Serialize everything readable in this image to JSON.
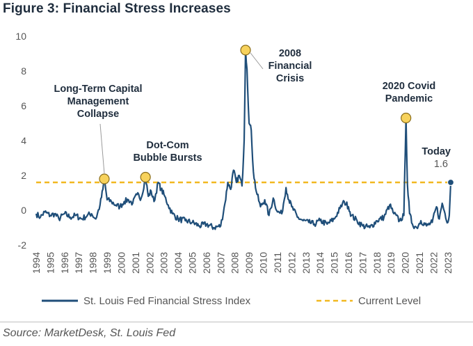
{
  "title": "Figure 3: Financial Stress Increases",
  "source": "Source: MarketDesk, St. Louis Fed",
  "colors": {
    "series": "#1f4e79",
    "current": "#f2b820",
    "marker": "#f7d25c",
    "text": "#1f2d3d"
  },
  "chart_data": {
    "type": "line",
    "title": "Figure 3: Financial Stress Increases",
    "xlabel": "",
    "ylabel": "",
    "ylim": [
      -2,
      10
    ],
    "yticks": [
      "-2",
      "0",
      "2",
      "4",
      "6",
      "8",
      "10"
    ],
    "xlim": [
      1994,
      2023.3
    ],
    "xticks": [
      "1994",
      "1995",
      "1996",
      "1997",
      "1998",
      "1999",
      "2000",
      "2001",
      "2002",
      "2003",
      "2004",
      "2005",
      "2006",
      "2007",
      "2008",
      "2009",
      "2010",
      "2011",
      "2012",
      "2013",
      "2014",
      "2015",
      "2016",
      "2017",
      "2018",
      "2019",
      "2020",
      "2021",
      "2022",
      "2023"
    ],
    "grid": false,
    "legend_position": "bottom",
    "series": [
      {
        "name": "St. Louis Fed Financial Stress Index",
        "x": [
          1994.0,
          1994.3,
          1994.6,
          1995.0,
          1995.3,
          1995.6,
          1996.0,
          1996.4,
          1996.8,
          1997.2,
          1997.6,
          1997.9,
          1998.2,
          1998.5,
          1998.7,
          1998.8,
          1999.0,
          1999.3,
          1999.6,
          1999.9,
          2000.2,
          2000.5,
          2000.8,
          2001.1,
          2001.4,
          2001.7,
          2001.9,
          2002.1,
          2002.3,
          2002.6,
          2002.8,
          2003.0,
          2003.3,
          2003.6,
          2004.0,
          2004.5,
          2005.0,
          2005.5,
          2006.0,
          2006.5,
          2007.0,
          2007.3,
          2007.5,
          2007.7,
          2007.9,
          2008.1,
          2008.3,
          2008.5,
          2008.65,
          2008.75,
          2008.85,
          2009.0,
          2009.15,
          2009.3,
          2009.5,
          2009.8,
          2010.1,
          2010.4,
          2010.7,
          2011.0,
          2011.3,
          2011.6,
          2011.8,
          2012.0,
          2012.4,
          2012.8,
          2013.2,
          2013.6,
          2014.0,
          2014.5,
          2015.0,
          2015.4,
          2015.7,
          2016.0,
          2016.2,
          2016.6,
          2017.0,
          2017.5,
          2018.0,
          2018.5,
          2018.9,
          2019.2,
          2019.6,
          2019.9,
          2020.05,
          2020.15,
          2020.3,
          2020.5,
          2020.8,
          2021.1,
          2021.5,
          2021.9,
          2022.2,
          2022.4,
          2022.6,
          2022.8,
          2023.0,
          2023.1,
          2023.2
        ],
        "y": [
          -0.2,
          -0.4,
          -0.1,
          -0.3,
          -0.2,
          -0.5,
          -0.2,
          -0.4,
          -0.3,
          -0.5,
          -0.3,
          -0.2,
          -0.5,
          0.3,
          1.2,
          1.8,
          0.6,
          0.5,
          0.3,
          0.2,
          0.5,
          0.6,
          0.4,
          0.9,
          0.7,
          1.9,
          0.8,
          1.1,
          0.5,
          1.6,
          1.2,
          0.9,
          0.3,
          -0.2,
          -0.5,
          -0.6,
          -0.7,
          -0.9,
          -0.8,
          -1.0,
          -0.9,
          0.4,
          1.6,
          1.2,
          2.3,
          1.6,
          2.0,
          1.4,
          4.0,
          9.2,
          8.1,
          5.0,
          4.6,
          2.2,
          1.1,
          0.2,
          0.6,
          -0.3,
          0.7,
          -0.1,
          -0.2,
          1.3,
          0.6,
          0.2,
          -0.4,
          -0.6,
          -0.7,
          -0.8,
          -0.6,
          -0.8,
          -0.5,
          0.1,
          0.5,
          0.2,
          -0.3,
          -0.6,
          -0.9,
          -1.0,
          -0.6,
          -0.4,
          0.3,
          -0.2,
          -0.6,
          -0.3,
          5.3,
          1.5,
          -0.2,
          -0.8,
          -1.0,
          -0.6,
          -0.9,
          -0.7,
          0.2,
          -0.5,
          0.4,
          -0.2,
          -0.7,
          -0.3,
          1.6
        ]
      },
      {
        "name": "Current Level",
        "value": 1.6
      }
    ],
    "annotations": [
      {
        "lines": [
          "Long-Term Capital",
          "Management",
          "Collapse"
        ],
        "x": 1998.8,
        "y": 1.8
      },
      {
        "lines": [
          "Dot-Com",
          "Bubble Bursts"
        ],
        "x": 2001.7,
        "y": 1.9
      },
      {
        "lines": [
          "2008",
          "Financial",
          "Crisis"
        ],
        "x": 2008.75,
        "y": 9.2
      },
      {
        "lines": [
          "2020 Covid",
          "Pandemic"
        ],
        "x": 2020.05,
        "y": 5.3
      },
      {
        "lines": [
          "Today",
          "1.6"
        ],
        "x": 2023.2,
        "y": 1.6
      }
    ]
  }
}
